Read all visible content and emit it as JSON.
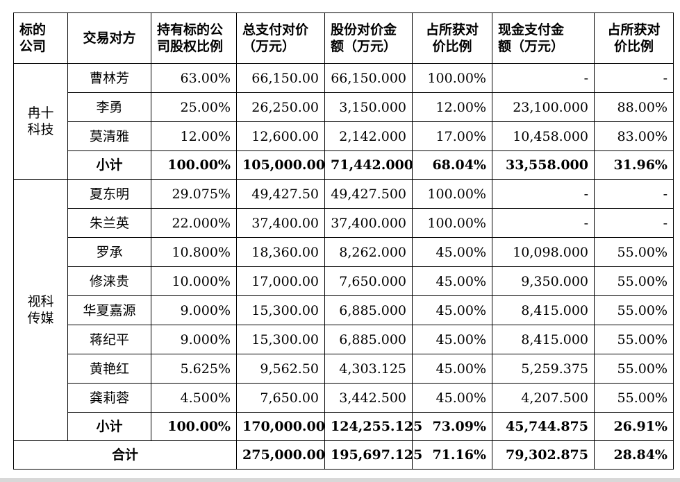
{
  "headers": [
    "标的公司",
    "交易对方",
    "持有标的公司股权比例",
    "总支付对价（万元）",
    "股份对价金额（万元）",
    "占所获对价比例",
    "现金支付金额（万元）",
    "占所获对价比例"
  ],
  "header_lines": [
    [
      "标的",
      "公司"
    ],
    [
      "交易对方"
    ],
    [
      "持有标的公",
      "司股权比例"
    ],
    [
      "总支付对价",
      "（万元）"
    ],
    [
      "股份对价金",
      "额（万元）"
    ],
    [
      "占所获对",
      "价比例"
    ],
    [
      "现金支付金",
      "额（万元）"
    ],
    [
      "占所获对",
      "价比例"
    ]
  ],
  "groups": [
    {
      "company_lines": [
        "冉十",
        "科技"
      ],
      "rows": [
        [
          "曹林芳",
          "63.00%",
          "66,150.00",
          "66,150.000",
          "100.00%",
          "-",
          "-"
        ],
        [
          "李勇",
          "25.00%",
          "26,250.00",
          "3,150.000",
          "12.00%",
          "23,100.000",
          "88.00%"
        ],
        [
          "莫清雅",
          "12.00%",
          "12,600.00",
          "2,142.000",
          "17.00%",
          "10,458.000",
          "83.00%"
        ]
      ],
      "subtotal": [
        "小计",
        "100.00%",
        "105,000.00",
        "71,442.000",
        "68.04%",
        "33,558.000",
        "31.96%"
      ]
    },
    {
      "company_lines": [
        "视科",
        "传媒"
      ],
      "rows": [
        [
          "夏东明",
          "29.075%",
          "49,427.50",
          "49,427.500",
          "100.00%",
          "-",
          "-"
        ],
        [
          "朱兰英",
          "22.000%",
          "37,400.00",
          "37,400.000",
          "100.00%",
          "-",
          "-"
        ],
        [
          "罗承",
          "10.800%",
          "18,360.00",
          "8,262.000",
          "45.00%",
          "10,098.000",
          "55.00%"
        ],
        [
          "修涞贵",
          "10.000%",
          "17,000.00",
          "7,650.000",
          "45.00%",
          "9,350.000",
          "55.00%"
        ],
        [
          "华夏嘉源",
          "9.000%",
          "15,300.00",
          "6,885.000",
          "45.00%",
          "8,415.000",
          "55.00%"
        ],
        [
          "蒋纪平",
          "9.000%",
          "15,300.00",
          "6,885.000",
          "45.00%",
          "8,415.000",
          "55.00%"
        ],
        [
          "黄艳红",
          "5.625%",
          "9,562.50",
          "4,303.125",
          "45.00%",
          "5,259.375",
          "55.00%"
        ],
        [
          "龚莉蓉",
          "4.500%",
          "7,650.00",
          "3,442.500",
          "45.00%",
          "4,207.500",
          "55.00%"
        ]
      ],
      "subtotal": [
        "小计",
        "100.00%",
        "170,000.00",
        "124,255.125",
        "73.09%",
        "45,744.875",
        "26.91%"
      ]
    }
  ],
  "total": [
    "合计",
    "275,000.00",
    "195,697.125",
    "71.16%",
    "79,302.875",
    "28.84%"
  ]
}
